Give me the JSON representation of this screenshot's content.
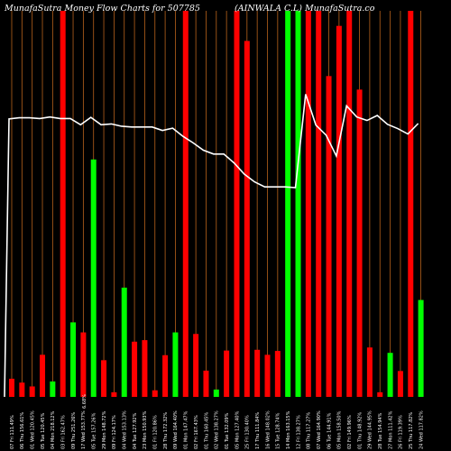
{
  "chart_data": {
    "type": "bar",
    "title_left": "MunafaSutra  Money Flow  Charts for 507785",
    "title_right": "(AINWALA C.L) MunafaSutra.co",
    "colors": {
      "background": "#000000",
      "up": "#00ff00",
      "down": "#ff0000",
      "line": "#ffffff",
      "grid": "#b8621b"
    },
    "ylim": [
      0,
      100
    ],
    "bars": [
      {
        "label": "07 Fri 111.49%",
        "value": 4.7,
        "dir": "down"
      },
      {
        "label": "06 Thu 156.61%",
        "value": 3.7,
        "dir": "down"
      },
      {
        "label": "01 Wed 120.45%",
        "value": 2.7,
        "dir": "down"
      },
      {
        "label": "05 Tue 120.45%",
        "value": 10.9,
        "dir": "down"
      },
      {
        "label": "04 Mon 218.12%",
        "value": 4.0,
        "dir": "up"
      },
      {
        "label": "03 Fri 162.47%",
        "value": 100,
        "dir": "down"
      },
      {
        "label": "09 Thu 251.26%",
        "value": 19.3,
        "dir": "up"
      },
      {
        "label": "17 Wed 153.77%",
        "value": 16.7,
        "dir": "down"
      },
      {
        "label": "05 Tue 157.26%",
        "value": 61.5,
        "dir": "up"
      },
      {
        "label": "29 Mon 148.72%",
        "value": 9.5,
        "dir": "down"
      },
      {
        "label": "09 Fri 124.17%",
        "value": 1.2,
        "dir": "down"
      },
      {
        "label": "04 Wed 153.13%",
        "value": 28.3,
        "dir": "up"
      },
      {
        "label": "04 Tue 127.92%",
        "value": 14.3,
        "dir": "down"
      },
      {
        "label": "23 Mon 150.93%",
        "value": 14.7,
        "dir": "down"
      },
      {
        "label": "01 Fri 120.86%",
        "value": 1.7,
        "dir": "down"
      },
      {
        "label": "28 Thu 172.32%",
        "value": 10.8,
        "dir": "down"
      },
      {
        "label": "09 Wed 164.40%",
        "value": 16.7,
        "dir": "up"
      },
      {
        "label": "01 Mon 147.47%",
        "value": 100,
        "dir": "down"
      },
      {
        "label": "02 Fri 167.43%",
        "value": 16.3,
        "dir": "down"
      },
      {
        "label": "01 Thu 160.45%",
        "value": 6.8,
        "dir": "down"
      },
      {
        "label": "02 Wed 138.27%",
        "value": 1.9,
        "dir": "up"
      },
      {
        "label": "01 Tue 132.09%",
        "value": 12.0,
        "dir": "down"
      },
      {
        "label": "05 Mon 127.40%",
        "value": 100,
        "dir": "down"
      },
      {
        "label": "25 Fri 130.40%",
        "value": 92.2,
        "dir": "down"
      },
      {
        "label": "17 Thu 111.84%",
        "value": 12.2,
        "dir": "down"
      },
      {
        "label": "16 Wed 148.02%",
        "value": 10.9,
        "dir": "down"
      },
      {
        "label": "15 Tue 128.74%",
        "value": 11.9,
        "dir": "down"
      },
      {
        "label": "14 Mon 163.15%",
        "value": 100,
        "dir": "up"
      },
      {
        "label": "12 Fri 138.27%",
        "value": 100,
        "dir": "up"
      },
      {
        "label": "08 Thu 117.27%",
        "value": 100,
        "dir": "down"
      },
      {
        "label": "07 Wed 164.90%",
        "value": 100,
        "dir": "down"
      },
      {
        "label": "06 Tue 144.91%",
        "value": 83.1,
        "dir": "down"
      },
      {
        "label": "05 Mon 158.50%",
        "value": 96.1,
        "dir": "down"
      },
      {
        "label": "02 Fri 149.96%",
        "value": 100,
        "dir": "down"
      },
      {
        "label": "01 Thu 148.92%",
        "value": 79.6,
        "dir": "down"
      },
      {
        "label": "29 Wed 144.95%",
        "value": 12.8,
        "dir": "down"
      },
      {
        "label": "28 Tue 154.94%",
        "value": 1.2,
        "dir": "down"
      },
      {
        "label": "27 Mon 111.42%",
        "value": 11.4,
        "dir": "up"
      },
      {
        "label": "26 Fri 119.39%",
        "value": 6.7,
        "dir": "down"
      },
      {
        "label": "25 Thu 117.82%",
        "value": 100,
        "dir": "down"
      },
      {
        "label": "24 Wed 117.82%",
        "value": 25.1,
        "dir": "up"
      }
    ],
    "line": [
      72,
      72.3,
      72.3,
      72.1,
      72.5,
      72.1,
      72.1,
      70.5,
      72.4,
      70.5,
      70.7,
      70.1,
      69.9,
      69.9,
      69.9,
      69.0,
      69.6,
      67.5,
      65.8,
      63.9,
      62.9,
      62.9,
      60.6,
      57.7,
      55.7,
      54.4,
      54.4,
      54.4,
      54.2,
      78.4,
      70.4,
      67.8,
      62.4,
      75.4,
      72.5,
      71.6,
      72.9,
      70.6,
      69.5,
      68.1,
      70.8
    ],
    "marker_label": "6.68%"
  }
}
